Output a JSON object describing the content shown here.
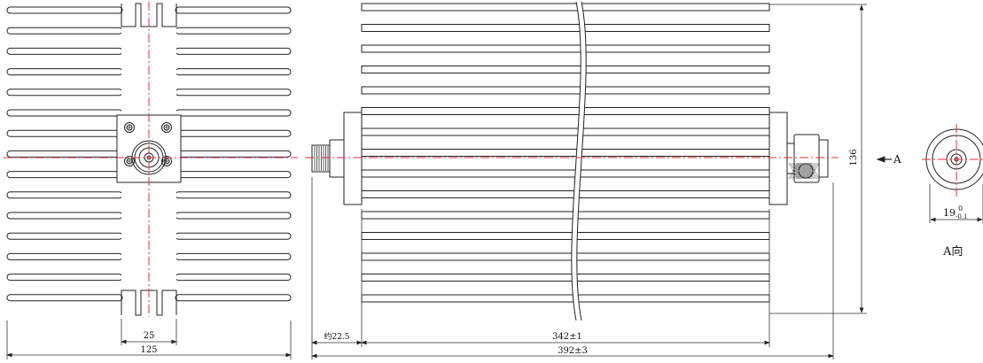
{
  "dimensions": {
    "heatsink_width": "125",
    "flange_width": "25",
    "connector_protrusion": "约22.5",
    "body_length": "342±1",
    "total_length": "392±3",
    "height": "136",
    "connector_diameter": "19",
    "tolerance_upper": "0",
    "tolerance_lower": "-0.1"
  },
  "labels": {
    "view_arrow": "A",
    "view_a": "A向"
  },
  "colors": {
    "centerline": "#e0303a",
    "line": "#222222"
  }
}
